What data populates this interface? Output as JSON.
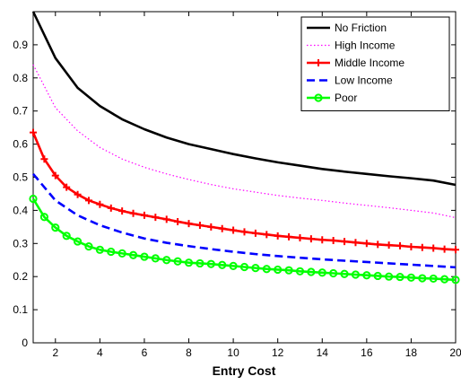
{
  "chart_data": {
    "type": "line",
    "xlabel": "Entry Cost",
    "ylabel": "",
    "xlim": [
      1,
      20
    ],
    "ylim": [
      0,
      1
    ],
    "x_ticks": [
      2,
      4,
      6,
      8,
      10,
      12,
      14,
      16,
      18,
      20
    ],
    "y_ticks": [
      0,
      0.1,
      0.2,
      0.3,
      0.4,
      0.5,
      0.6,
      0.7,
      0.8,
      0.9
    ],
    "legend_position": "top-right",
    "grid": false,
    "series": [
      {
        "name": "No Friction",
        "color": "#000000",
        "style": "solid",
        "marker": "none",
        "x": [
          1,
          2,
          3,
          4,
          5,
          6,
          7,
          8,
          9,
          10,
          11,
          12,
          13,
          14,
          15,
          16,
          17,
          18,
          19,
          20
        ],
        "values": [
          1.0,
          0.86,
          0.77,
          0.715,
          0.675,
          0.645,
          0.62,
          0.6,
          0.585,
          0.57,
          0.557,
          0.545,
          0.535,
          0.525,
          0.517,
          0.51,
          0.503,
          0.497,
          0.49,
          0.477
        ]
      },
      {
        "name": "High Income",
        "color": "#ff00ff",
        "style": "dotted",
        "marker": "none",
        "x": [
          1,
          2,
          3,
          4,
          5,
          6,
          7,
          8,
          9,
          10,
          11,
          12,
          13,
          14,
          15,
          16,
          17,
          18,
          19,
          20
        ],
        "values": [
          0.84,
          0.71,
          0.64,
          0.59,
          0.555,
          0.53,
          0.51,
          0.493,
          0.478,
          0.465,
          0.455,
          0.445,
          0.437,
          0.43,
          0.422,
          0.415,
          0.408,
          0.4,
          0.392,
          0.378
        ]
      },
      {
        "name": "Middle Income",
        "color": "#ff0000",
        "style": "solid",
        "marker": "plus",
        "x": [
          1,
          1.5,
          2,
          2.5,
          3,
          3.5,
          4,
          4.5,
          5,
          5.5,
          6,
          6.5,
          7,
          7.5,
          8,
          8.5,
          9,
          9.5,
          10,
          10.5,
          11,
          11.5,
          12,
          12.5,
          13,
          13.5,
          14,
          14.5,
          15,
          15.5,
          16,
          16.5,
          17,
          17.5,
          18,
          18.5,
          19,
          19.5,
          20
        ],
        "values": [
          0.635,
          0.555,
          0.505,
          0.47,
          0.448,
          0.43,
          0.418,
          0.407,
          0.398,
          0.391,
          0.385,
          0.379,
          0.373,
          0.366,
          0.36,
          0.355,
          0.35,
          0.345,
          0.34,
          0.335,
          0.331,
          0.327,
          0.323,
          0.32,
          0.317,
          0.314,
          0.311,
          0.309,
          0.306,
          0.303,
          0.3,
          0.297,
          0.295,
          0.293,
          0.29,
          0.288,
          0.286,
          0.283,
          0.281
        ]
      },
      {
        "name": "Low Income",
        "color": "#0000ff",
        "style": "dashed",
        "marker": "none",
        "x": [
          1,
          2,
          3,
          4,
          5,
          6,
          7,
          8,
          9,
          10,
          11,
          12,
          13,
          14,
          15,
          16,
          17,
          18,
          19,
          20
        ],
        "values": [
          0.51,
          0.43,
          0.385,
          0.355,
          0.333,
          0.315,
          0.302,
          0.292,
          0.283,
          0.275,
          0.268,
          0.262,
          0.257,
          0.252,
          0.248,
          0.244,
          0.24,
          0.236,
          0.232,
          0.228
        ]
      },
      {
        "name": "Poor",
        "color": "#00ff00",
        "style": "solid",
        "marker": "circle",
        "x": [
          1,
          1.5,
          2,
          2.5,
          3,
          3.5,
          4,
          4.5,
          5,
          5.5,
          6,
          6.5,
          7,
          7.5,
          8,
          8.5,
          9,
          9.5,
          10,
          10.5,
          11,
          11.5,
          12,
          12.5,
          13,
          13.5,
          14,
          14.5,
          15,
          15.5,
          16,
          16.5,
          17,
          17.5,
          18,
          18.5,
          19,
          19.5,
          20
        ],
        "values": [
          0.435,
          0.38,
          0.348,
          0.323,
          0.306,
          0.291,
          0.281,
          0.275,
          0.27,
          0.265,
          0.26,
          0.255,
          0.25,
          0.246,
          0.242,
          0.24,
          0.238,
          0.235,
          0.232,
          0.229,
          0.226,
          0.223,
          0.221,
          0.219,
          0.216,
          0.214,
          0.212,
          0.21,
          0.208,
          0.206,
          0.204,
          0.202,
          0.2,
          0.199,
          0.197,
          0.195,
          0.194,
          0.192,
          0.19
        ]
      }
    ]
  }
}
